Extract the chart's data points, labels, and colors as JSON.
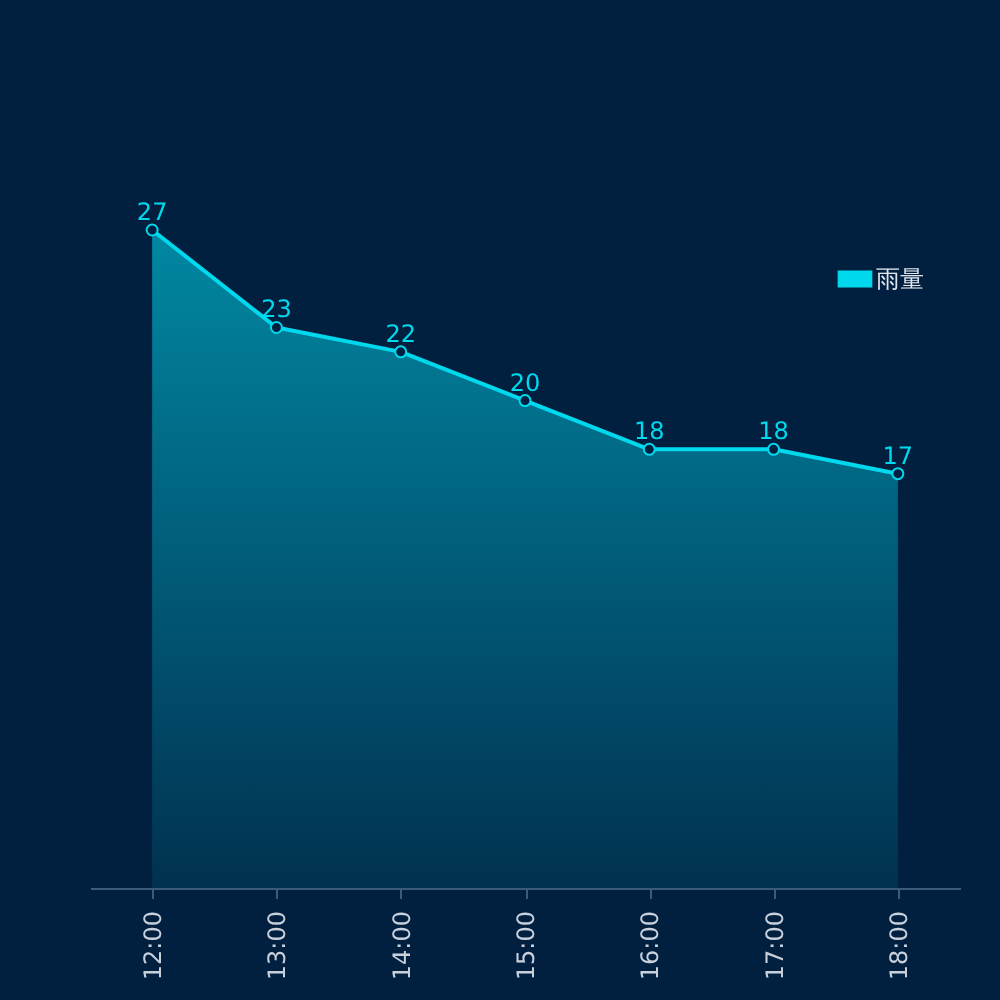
{
  "chart_data": {
    "type": "area",
    "categories": [
      "12:00",
      "13:00",
      "14:00",
      "15:00",
      "16:00",
      "17:00",
      "18:00"
    ],
    "series": [
      {
        "name": "雨量",
        "color": "#00d8ee",
        "values": [
          27,
          23,
          22,
          20,
          18,
          18,
          17
        ]
      }
    ],
    "data_labels": true,
    "marker": "circle",
    "legend": "top right",
    "grid": false
  }
}
